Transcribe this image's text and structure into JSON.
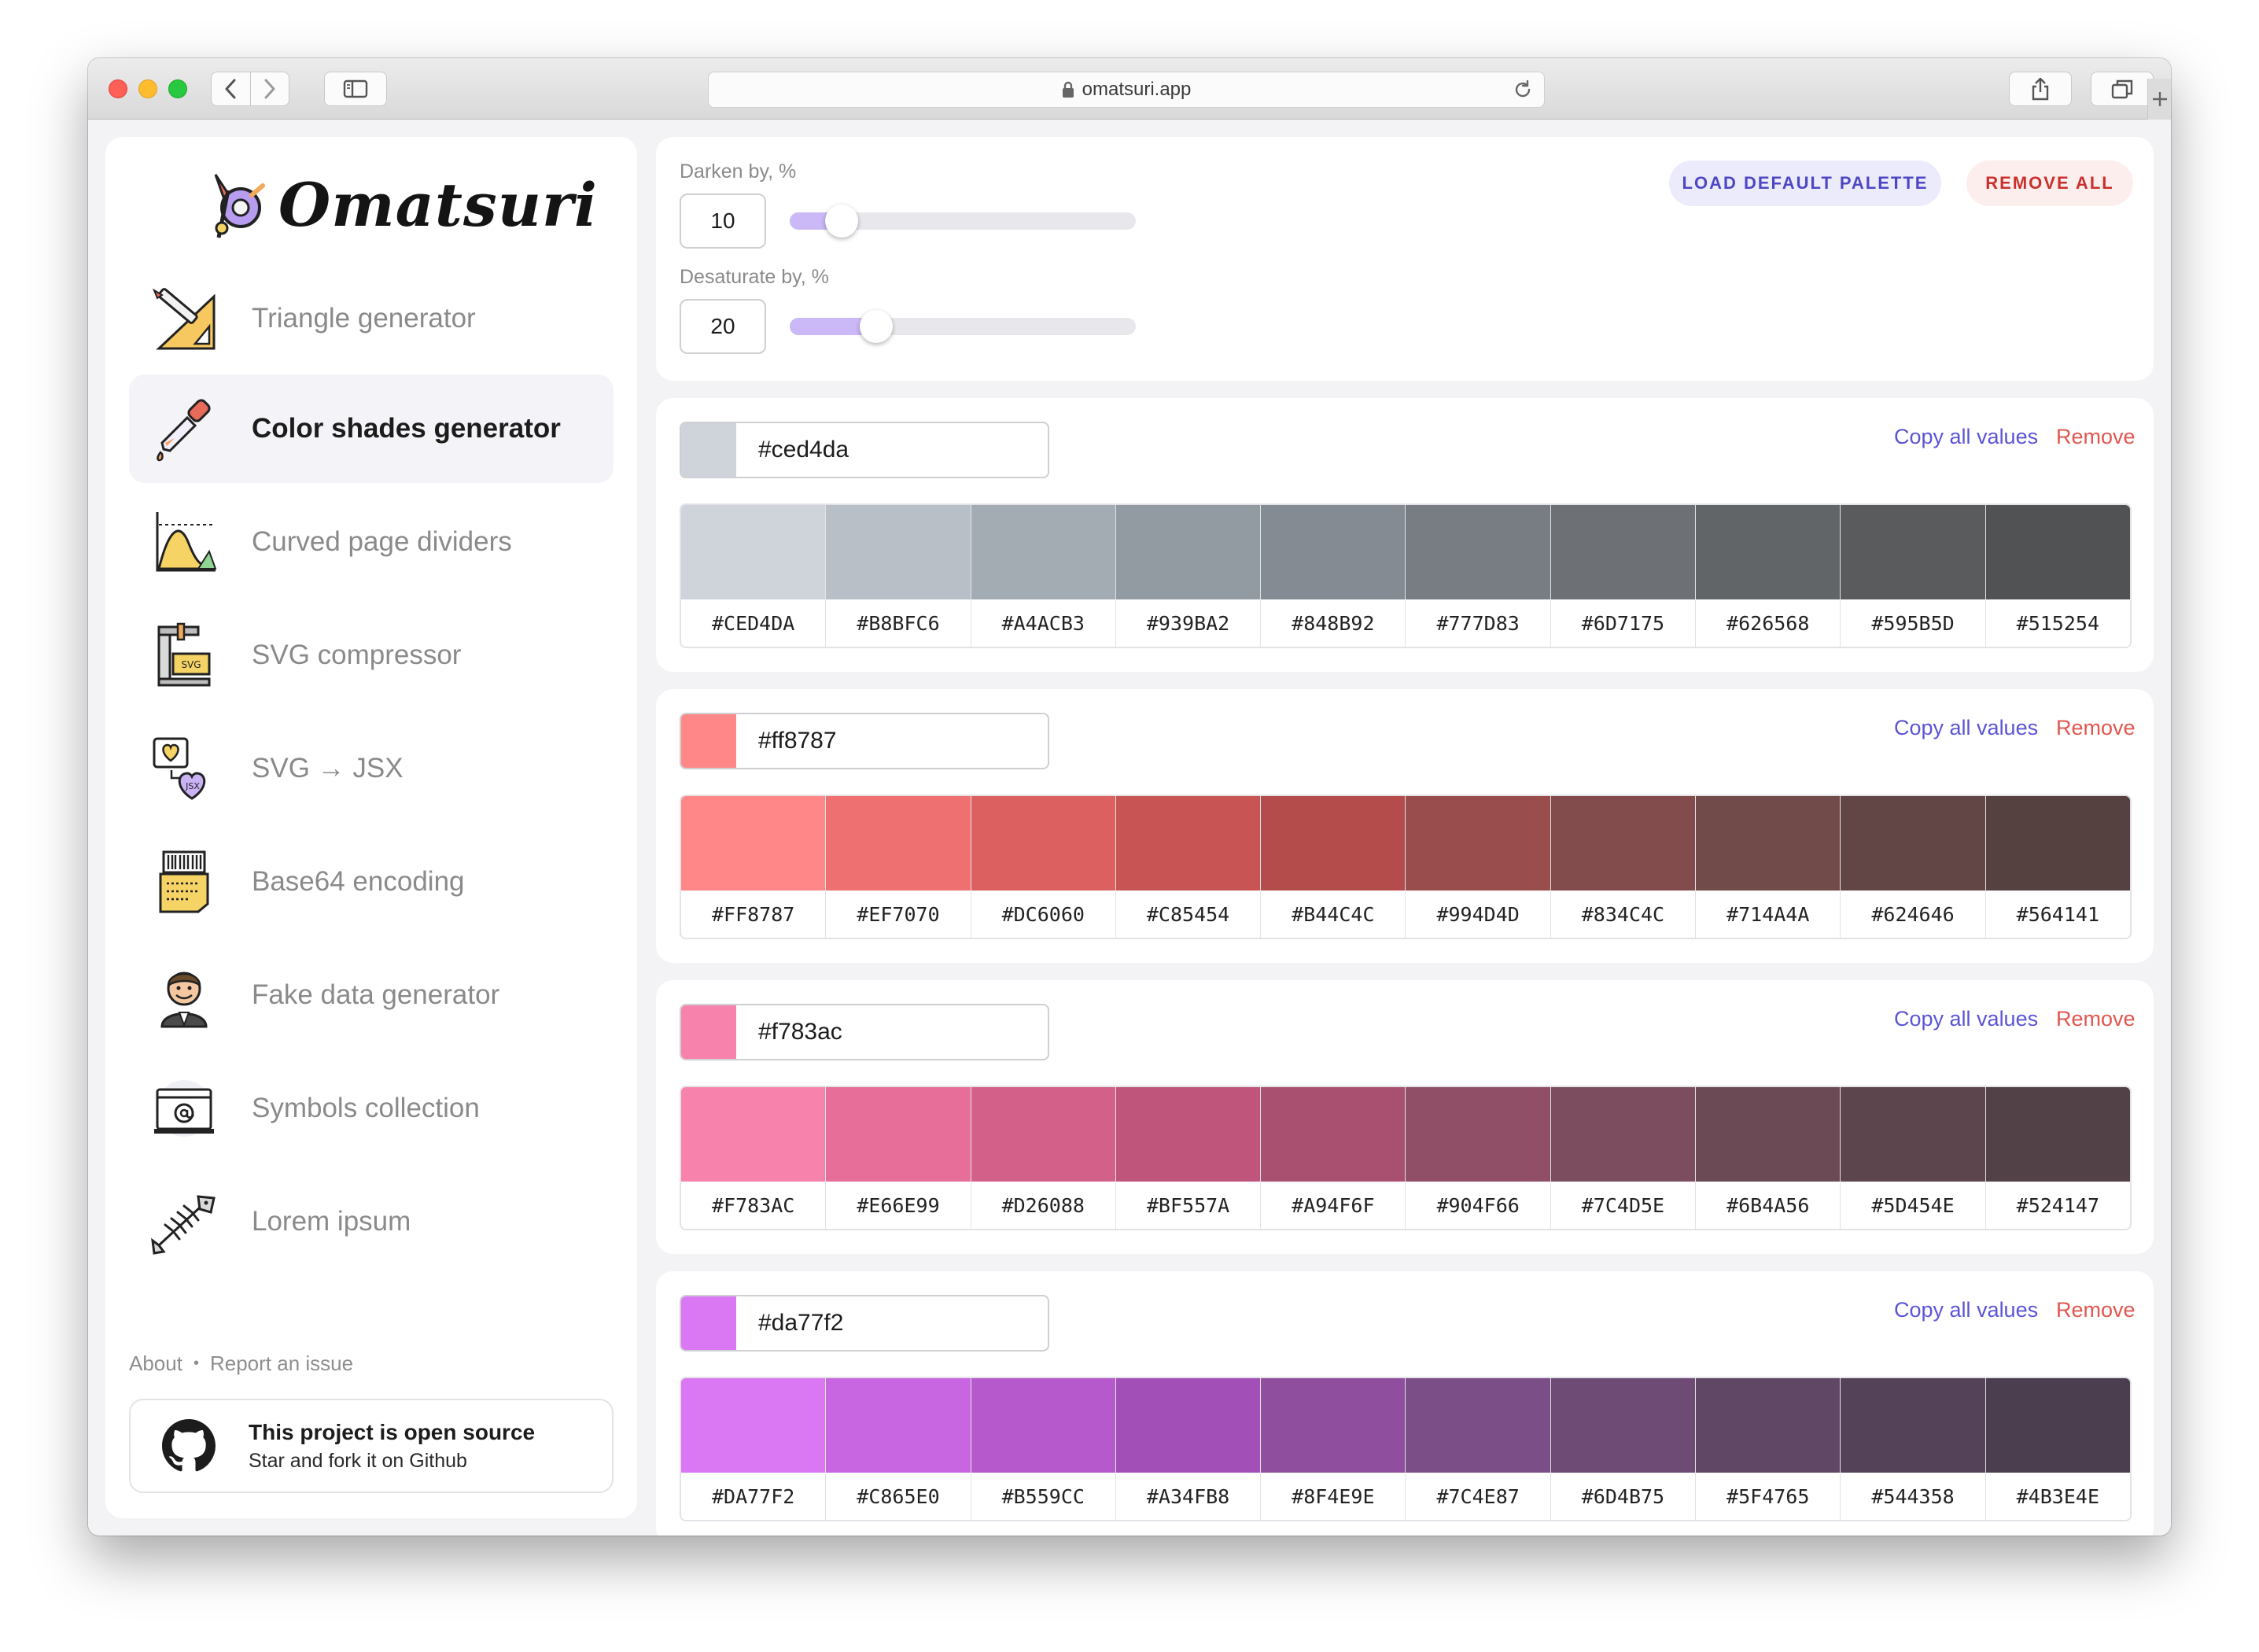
{
  "browser": {
    "url": "omatsuri.app",
    "icons": [
      "back-icon",
      "forward-icon",
      "sidebar-icon",
      "lock-icon",
      "reload-icon",
      "share-icon",
      "tabs-icon",
      "plus-icon"
    ]
  },
  "brand": {
    "name": "Omatsuri"
  },
  "sidebar": {
    "items": [
      {
        "label": "Triangle generator",
        "icon": "triangle-ruler-icon",
        "active": false
      },
      {
        "label": "Color shades generator",
        "icon": "pipette-icon",
        "active": true
      },
      {
        "label": "Curved page dividers",
        "icon": "curve-chart-icon",
        "active": false
      },
      {
        "label": "SVG compressor",
        "icon": "svg-press-icon",
        "active": false
      },
      {
        "label": "SVG → JSX",
        "icon": "svg-to-jsx-icon",
        "active": false
      },
      {
        "label": "Base64 encoding",
        "icon": "barcode-document-icon",
        "active": false
      },
      {
        "label": "Fake data generator",
        "icon": "fake-person-icon",
        "active": false
      },
      {
        "label": "Symbols collection",
        "icon": "at-symbol-icon",
        "active": false
      },
      {
        "label": "Lorem ipsum",
        "icon": "fish-bone-icon",
        "active": false
      }
    ],
    "footer": {
      "about": "About",
      "separator": "•",
      "report": "Report an issue",
      "github_title": "This project is open source",
      "github_sub": "Star and fork it on Github"
    }
  },
  "controls": {
    "darken_label": "Darken by, %",
    "darken_value": "10",
    "darken_fraction": 0.1,
    "desaturate_label": "Desaturate by, %",
    "desaturate_value": "20",
    "desaturate_fraction": 0.2,
    "load_default_label": "LOAD DEFAULT PALETTE",
    "remove_all_label": "REMOVE ALL"
  },
  "palette_actions": {
    "copy_label": "Copy all values",
    "remove_label": "Remove"
  },
  "palettes": [
    {
      "base": "#ced4da",
      "shades": [
        "#CED4DA",
        "#B8BFC6",
        "#A4ACB3",
        "#939BA2",
        "#848B92",
        "#777D83",
        "#6D7175",
        "#626568",
        "#595B5D",
        "#515254"
      ]
    },
    {
      "base": "#ff8787",
      "shades": [
        "#FF8787",
        "#EF7070",
        "#DC6060",
        "#C85454",
        "#B44C4C",
        "#994D4D",
        "#834C4C",
        "#714A4A",
        "#624646",
        "#564141"
      ]
    },
    {
      "base": "#f783ac",
      "shades": [
        "#F783AC",
        "#E66E99",
        "#D26088",
        "#BF557A",
        "#A94F6F",
        "#904F66",
        "#7C4D5E",
        "#6B4A56",
        "#5D454E",
        "#524147"
      ]
    },
    {
      "base": "#da77f2",
      "shades": [
        "#DA77F2",
        "#C865E0",
        "#B559CC",
        "#A34FB8",
        "#8F4E9E",
        "#7C4E87",
        "#6D4B75",
        "#5F4765",
        "#544358",
        "#4B3E4E"
      ]
    }
  ]
}
